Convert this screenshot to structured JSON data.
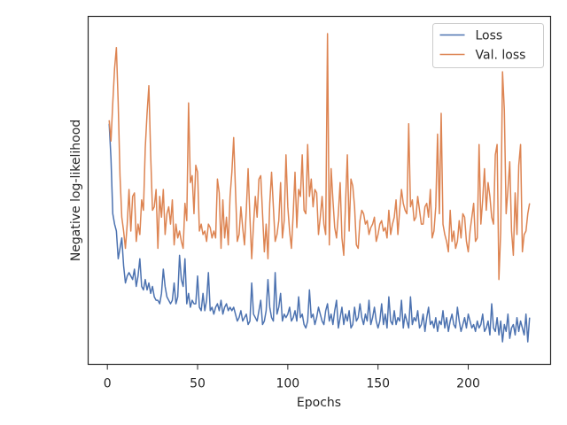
{
  "chart_data": {
    "type": "line",
    "xlabel": "Epochs",
    "ylabel": "Negative log-likelihood",
    "x": [
      1,
      2,
      3,
      4,
      5,
      6,
      7,
      8,
      9,
      10,
      11,
      12,
      13,
      14,
      15,
      16,
      17,
      18,
      19,
      20,
      21,
      22,
      23,
      24,
      25,
      26,
      27,
      28,
      29,
      30,
      31,
      32,
      33,
      34,
      35,
      36,
      37,
      38,
      39,
      40,
      41,
      42,
      43,
      44,
      45,
      46,
      47,
      48,
      49,
      50,
      51,
      52,
      53,
      54,
      55,
      56,
      57,
      58,
      59,
      60,
      61,
      62,
      63,
      64,
      65,
      66,
      67,
      68,
      69,
      70,
      71,
      72,
      73,
      74,
      75,
      76,
      77,
      78,
      79,
      80,
      81,
      82,
      83,
      84,
      85,
      86,
      87,
      88,
      89,
      90,
      91,
      92,
      93,
      94,
      95,
      96,
      97,
      98,
      99,
      100,
      101,
      102,
      103,
      104,
      105,
      106,
      107,
      108,
      109,
      110,
      111,
      112,
      113,
      114,
      115,
      116,
      117,
      118,
      119,
      120,
      121,
      122,
      123,
      124,
      125,
      126,
      127,
      128,
      129,
      130,
      131,
      132,
      133,
      134,
      135,
      136,
      137,
      138,
      139,
      140,
      141,
      142,
      143,
      144,
      145,
      146,
      147,
      148,
      149,
      150,
      151,
      152,
      153,
      154,
      155,
      156,
      157,
      158,
      159,
      160,
      161,
      162,
      163,
      164,
      165,
      166,
      167,
      168,
      169,
      170,
      171,
      172,
      173,
      174,
      175,
      176,
      177,
      178,
      179,
      180,
      181,
      182,
      183,
      184,
      185,
      186,
      187,
      188,
      189,
      190,
      191,
      192,
      193,
      194,
      195,
      196,
      197,
      198,
      199,
      200,
      201,
      202,
      203,
      204,
      205,
      206,
      207,
      208,
      209,
      210,
      211,
      212,
      213,
      214,
      215,
      216,
      217,
      218,
      219,
      220,
      221,
      222,
      223,
      224,
      225,
      226,
      227,
      228,
      229,
      230,
      231,
      232,
      233,
      234
    ],
    "series": [
      {
        "name": "Loss",
        "color": "#4c72b0",
        "values": [
          69,
          59,
          43,
          40,
          38,
          30,
          33,
          36,
          28,
          23,
          25,
          26,
          25,
          24,
          27,
          22,
          25,
          30,
          22,
          21,
          24,
          21,
          23,
          20,
          22,
          19,
          18,
          18,
          17,
          20,
          27,
          22,
          19,
          18,
          17,
          18,
          23,
          17,
          19,
          31,
          24,
          22,
          30,
          17,
          20,
          16,
          18,
          17,
          17,
          25,
          16,
          15,
          20,
          15,
          18,
          26,
          15,
          16,
          14,
          16,
          17,
          15,
          18,
          14,
          16,
          17,
          15,
          16,
          15,
          16,
          14,
          12,
          13,
          15,
          12,
          13,
          14,
          11,
          12,
          23,
          14,
          13,
          12,
          15,
          18,
          11,
          12,
          15,
          24,
          16,
          13,
          12,
          26,
          14,
          16,
          20,
          12,
          14,
          13,
          14,
          16,
          12,
          13,
          15,
          12,
          19,
          13,
          14,
          11,
          10,
          12,
          21,
          13,
          14,
          11,
          13,
          16,
          14,
          12,
          11,
          15,
          17,
          12,
          14,
          11,
          15,
          18,
          10,
          13,
          16,
          11,
          14,
          12,
          15,
          10,
          11,
          16,
          12,
          13,
          17,
          13,
          11,
          14,
          12,
          18,
          11,
          13,
          16,
          12,
          10,
          12,
          17,
          11,
          14,
          10,
          19,
          12,
          11,
          15,
          11,
          13,
          12,
          18,
          10,
          14,
          12,
          10,
          19,
          11,
          13,
          12,
          15,
          10,
          11,
          14,
          9,
          13,
          16,
          11,
          12,
          10,
          13,
          9,
          12,
          11,
          15,
          10,
          13,
          9,
          12,
          14,
          11,
          10,
          16,
          12,
          9,
          11,
          13,
          10,
          14,
          12,
          10,
          11,
          9,
          12,
          10,
          11,
          14,
          9,
          10,
          12,
          8,
          17,
          10,
          9,
          13,
          8,
          12,
          6,
          11,
          9,
          14,
          7,
          10,
          11,
          8,
          13,
          9,
          12,
          10,
          8,
          14,
          6,
          13
        ]
      },
      {
        "name": "Val. loss",
        "color": "#dd8452",
        "values": [
          70,
          64,
          75,
          85,
          91,
          75,
          54,
          42,
          38,
          33,
          40,
          50,
          38,
          48,
          49,
          35,
          40,
          37,
          47,
          44,
          62,
          72,
          80,
          60,
          44,
          45,
          50,
          33,
          48,
          42,
          50,
          37,
          43,
          45,
          40,
          47,
          34,
          40,
          36,
          38,
          35,
          33,
          46,
          41,
          75,
          52,
          54,
          43,
          57,
          55,
          38,
          40,
          37,
          38,
          35,
          40,
          39,
          36,
          38,
          36,
          53,
          49,
          33,
          47,
          36,
          42,
          34,
          48,
          55,
          65,
          50,
          35,
          37,
          45,
          39,
          34,
          44,
          56,
          42,
          30,
          40,
          48,
          42,
          53,
          54,
          43,
          32,
          40,
          30,
          46,
          55,
          45,
          35,
          37,
          41,
          52,
          36,
          41,
          60,
          45,
          38,
          33,
          43,
          55,
          39,
          50,
          48,
          60,
          44,
          43,
          63,
          48,
          53,
          45,
          50,
          49,
          37,
          42,
          48,
          40,
          37,
          95,
          34,
          56,
          47,
          39,
          36,
          43,
          52,
          36,
          31,
          46,
          60,
          38,
          53,
          51,
          45,
          34,
          33,
          41,
          44,
          43,
          40,
          41,
          37,
          39,
          40,
          42,
          35,
          37,
          40,
          41,
          38,
          39,
          36,
          44,
          37,
          40,
          42,
          47,
          37,
          44,
          50,
          46,
          44,
          43,
          69,
          45,
          47,
          41,
          42,
          48,
          44,
          40,
          40,
          45,
          46,
          42,
          50,
          36,
          38,
          45,
          66,
          43,
          72,
          40,
          37,
          35,
          32,
          44,
          35,
          38,
          33,
          35,
          41,
          36,
          43,
          42,
          35,
          32,
          38,
          42,
          46,
          35,
          36,
          63,
          40,
          47,
          56,
          44,
          52,
          48,
          42,
          40,
          60,
          63,
          24,
          38,
          84,
          73,
          43,
          50,
          58,
          38,
          31,
          49,
          37,
          57,
          63,
          32,
          37,
          38,
          43,
          46
        ]
      }
    ],
    "xlim": [
      -10.65,
      245.65
    ],
    "xticks": [
      0,
      50,
      100,
      150,
      200
    ],
    "ylim": [
      -0.5,
      100
    ],
    "legend": "upper right"
  }
}
